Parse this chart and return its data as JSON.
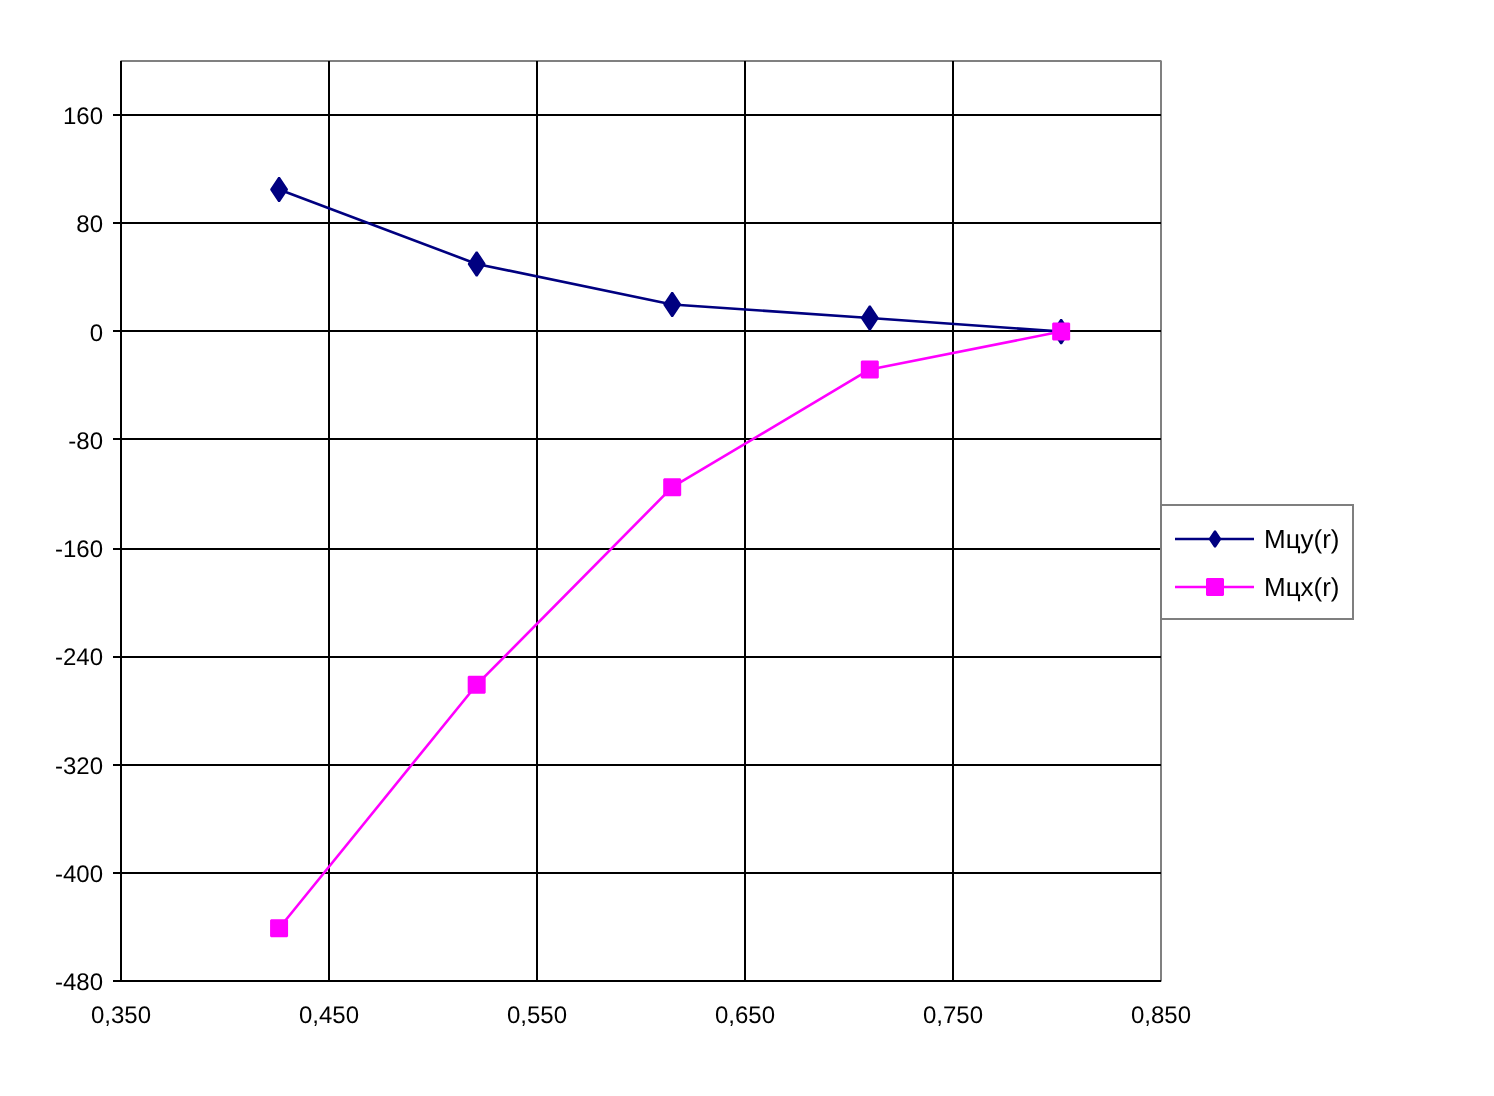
{
  "chart_data": {
    "type": "line",
    "x": [
      0.426,
      0.521,
      0.615,
      0.71,
      0.802
    ],
    "series": [
      {
        "name": "Мцу(r)",
        "color": "#000080",
        "marker": "diamond",
        "values": [
          105,
          50,
          20,
          10,
          0
        ]
      },
      {
        "name": "Мцх(r)",
        "color": "#ff00ff",
        "marker": "square",
        "values": [
          -441,
          -261,
          -115,
          -28,
          0
        ]
      }
    ],
    "xlim": [
      0.35,
      0.85
    ],
    "xticks": [
      {
        "value": 0.35,
        "label": "0,350"
      },
      {
        "value": 0.45,
        "label": "0,450"
      },
      {
        "value": 0.55,
        "label": "0,550"
      },
      {
        "value": 0.65,
        "label": "0,650"
      },
      {
        "value": 0.75,
        "label": "0,750"
      },
      {
        "value": 0.85,
        "label": "0,850"
      }
    ],
    "ylim": [
      -480,
      200
    ],
    "yticks": [
      -480,
      -400,
      -320,
      -240,
      -160,
      -80,
      0,
      80,
      160
    ],
    "grid": true,
    "legend": "right",
    "line_style": "solid"
  }
}
